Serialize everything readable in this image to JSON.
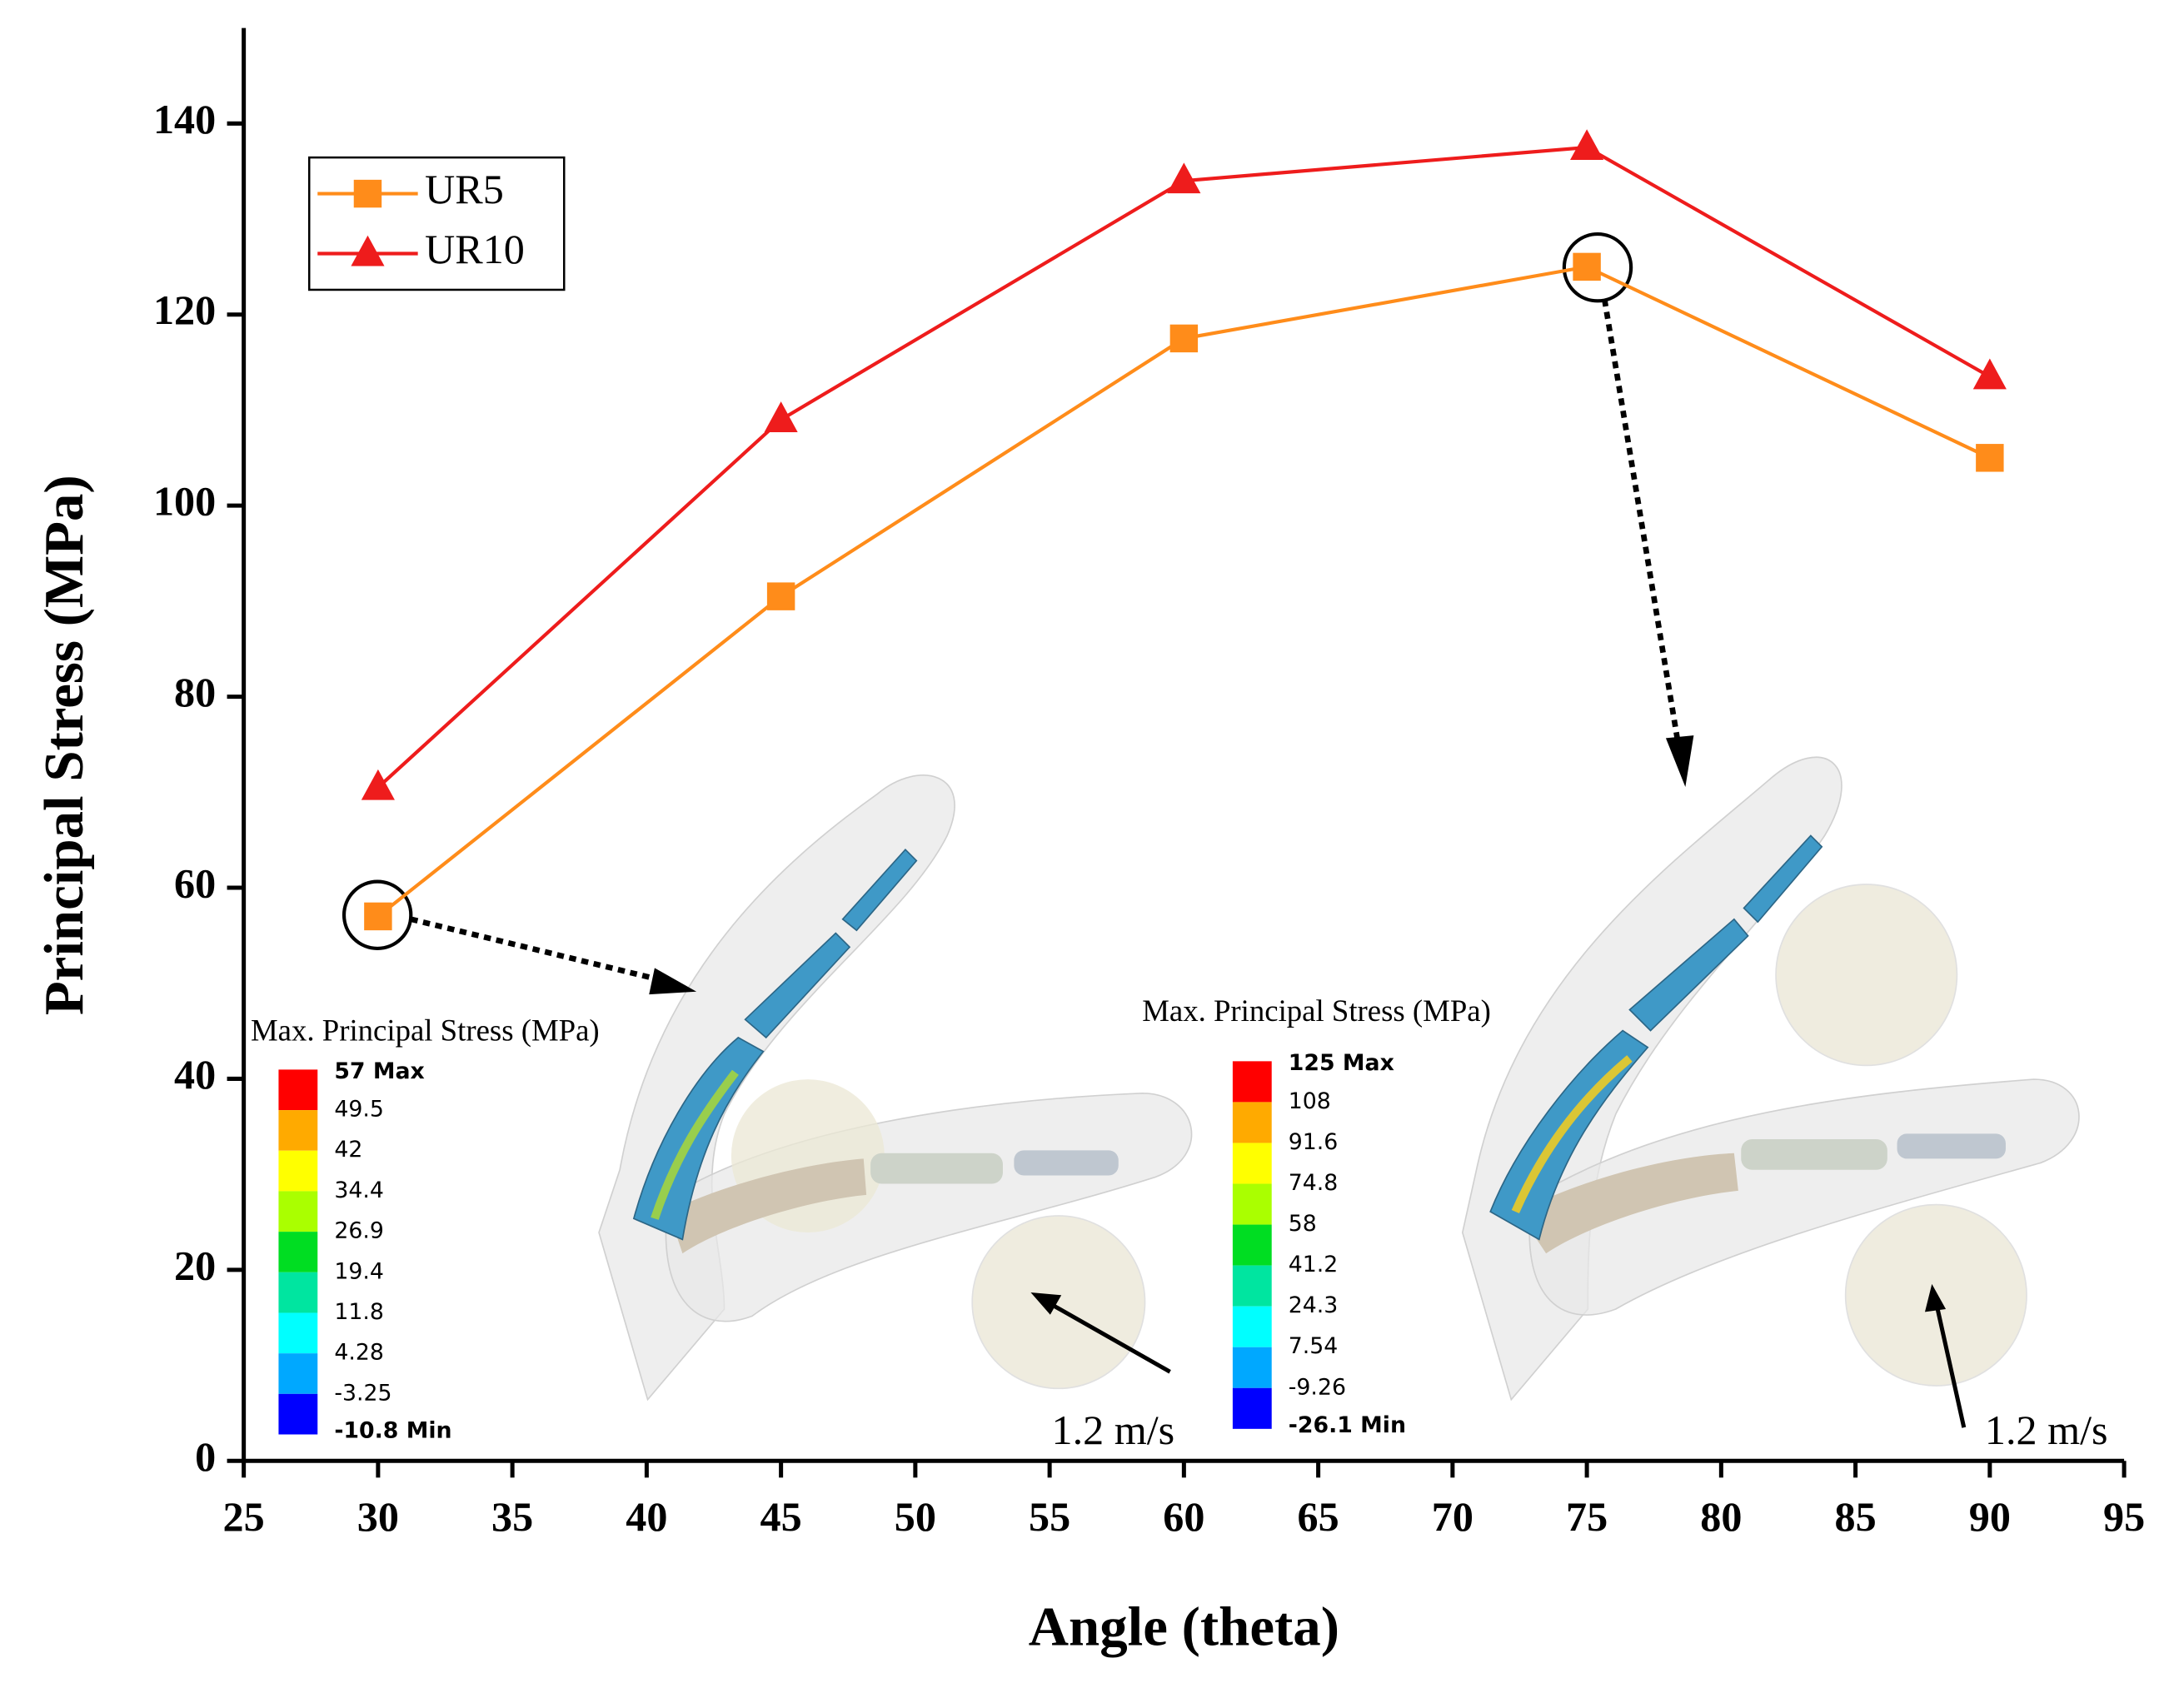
{
  "chart_data": {
    "type": "line",
    "x_label": "Angle (theta)",
    "y_label": "Principal Stress (MPa)",
    "x": [
      30,
      45,
      60,
      75,
      90
    ],
    "series": [
      {
        "name": "UR5",
        "color": "#ff8c1a",
        "marker": "square",
        "values": [
          57,
          90.5,
          117.5,
          125,
          105
        ]
      },
      {
        "name": "UR10",
        "color": "#ee1c1c",
        "marker": "triangle",
        "values": [
          70.5,
          109,
          134,
          137.5,
          113.5
        ]
      }
    ],
    "xlim": [
      25,
      95
    ],
    "xticks": [
      25,
      30,
      35,
      40,
      45,
      50,
      55,
      60,
      65,
      70,
      75,
      80,
      85,
      90,
      95
    ],
    "ylim": [
      0,
      150
    ],
    "yticks": [
      0,
      20,
      40,
      60,
      80,
      100,
      120,
      140
    ],
    "legend": "upper left",
    "insets": [
      {
        "title": "Max. Principal Stress (MPa)",
        "levels": [
          "57 Max",
          "49.5",
          "42",
          "34.4",
          "26.9",
          "19.4",
          "11.8",
          "4.28",
          "-3.25",
          "-10.8 Min"
        ],
        "speed": "1.2 m/s"
      },
      {
        "title": "Max. Principal Stress (MPa)",
        "levels": [
          "125 Max",
          "108",
          "91.6",
          "74.8",
          "58",
          "41.2",
          "24.3",
          "7.54",
          "-9.26",
          "-26.1 Min"
        ],
        "speed": "1.2 m/s"
      }
    ]
  }
}
